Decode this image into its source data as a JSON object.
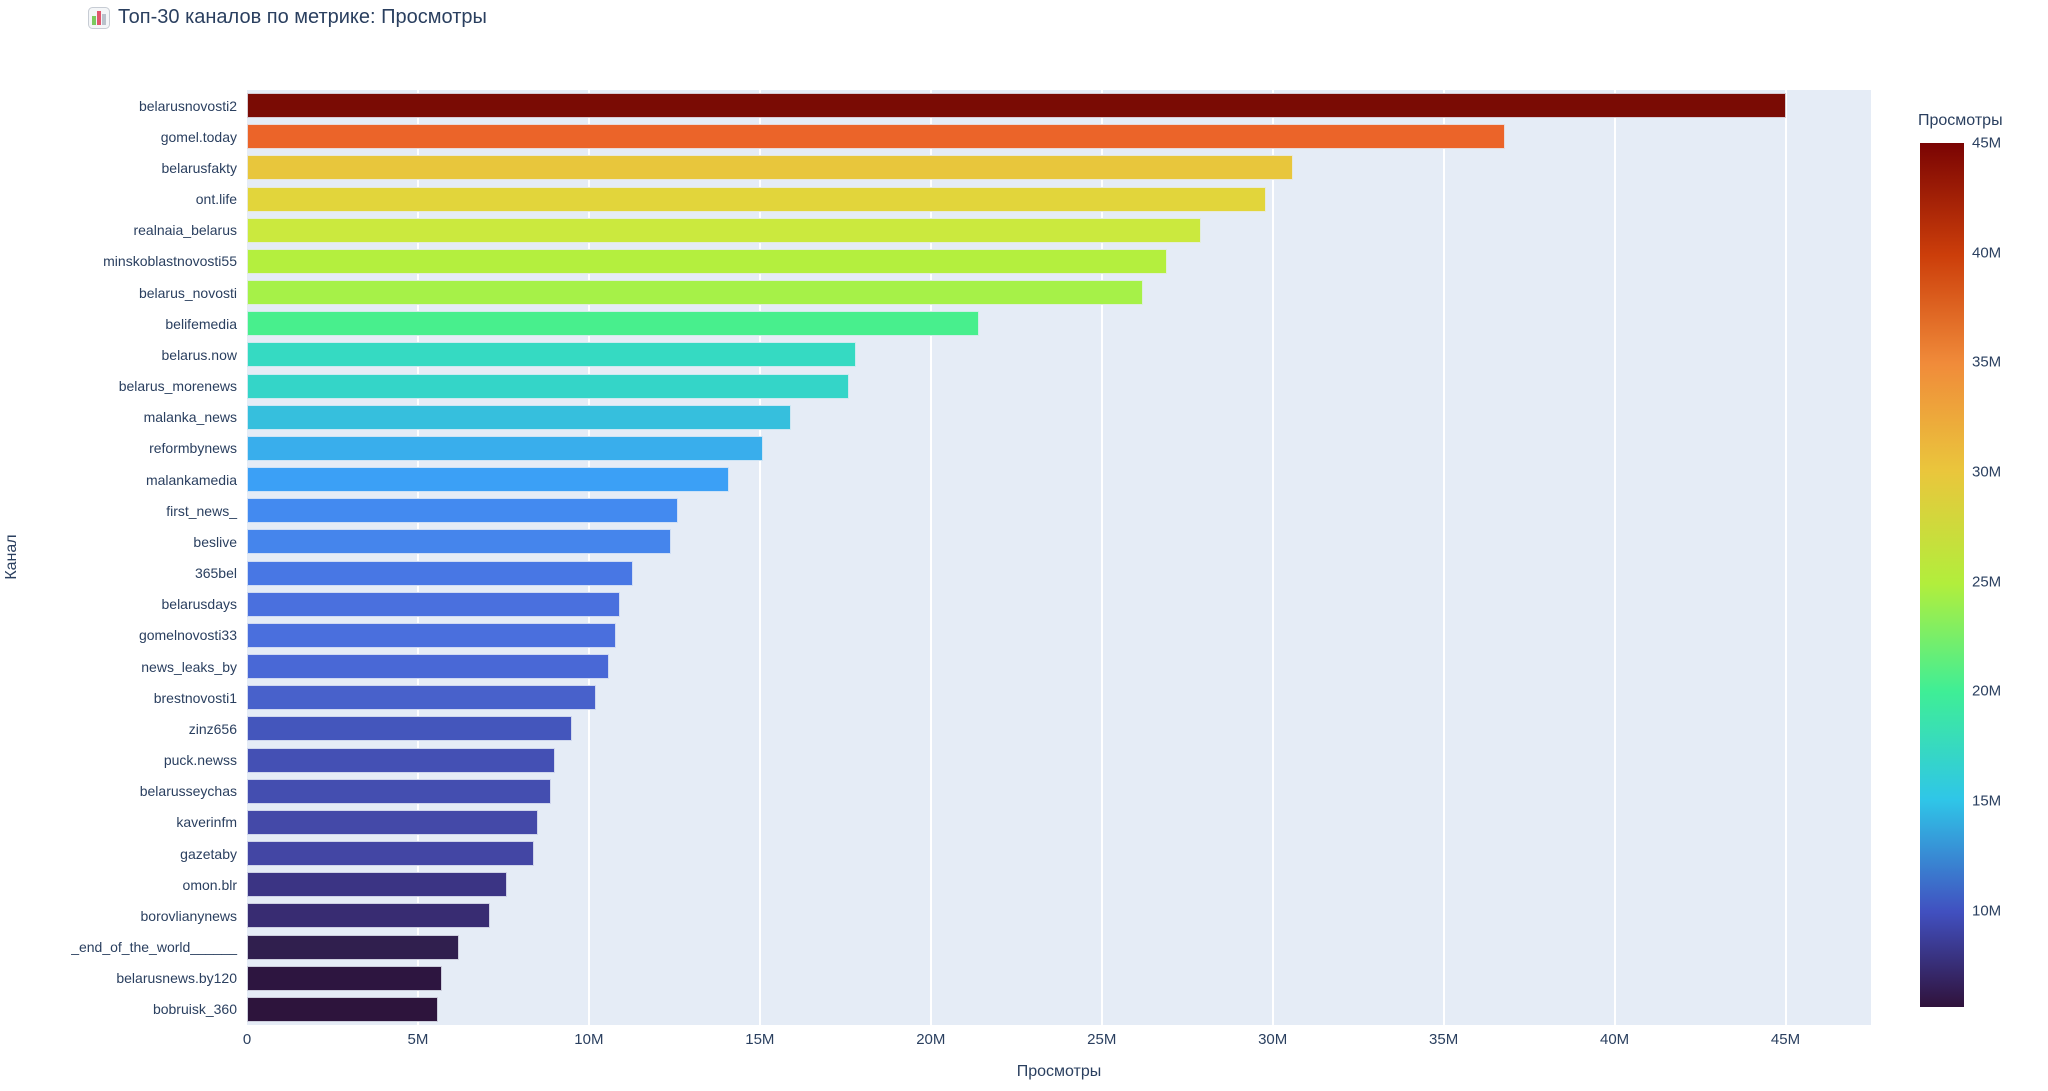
{
  "title": "Топ-30 каналов по метрике: Просмотры",
  "icons": {
    "title_icon": "bar-chart-emoji"
  },
  "colors": {
    "paper_bg": "#ffffff",
    "plot_bg": "#e5ecf6",
    "grid": "#ffffff",
    "text": "#2a3f5f"
  },
  "chart_data": {
    "type": "bar",
    "orientation": "horizontal",
    "title": "Топ-30 каналов по метрике: Просмотры",
    "xlabel": "Просмотры",
    "ylabel": "Канал",
    "xlim_m": [
      0,
      47.5
    ],
    "grid": true,
    "x_ticks": [
      "0",
      "5M",
      "10M",
      "15M",
      "20M",
      "25M",
      "30M",
      "35M",
      "40M",
      "45M"
    ],
    "x_tick_values_m": [
      0,
      5,
      10,
      15,
      20,
      25,
      30,
      35,
      40,
      45
    ],
    "categories": [
      "belarusnovosti2",
      "gomel.today",
      "belarusfakty",
      "ont.life",
      "realnaia_belarus",
      "minskoblastnovosti55",
      "belarus_novosti",
      "belifemedia",
      "belarus.now",
      "belarus_morenews",
      "malanka_news",
      "reformbynews",
      "malankamedia",
      "first_news_",
      "beslive",
      "365bel",
      "belarusdays",
      "gomelnovosti33",
      "news_leaks_by",
      "brestnovosti1",
      "zinz656",
      "puck.newss",
      "belarusseychas",
      "kaverinfm",
      "gazetaby",
      "omon.blr",
      "borovlianynews",
      "_end_of_the_world______",
      "belarusnews.by120",
      "bobruisk_360"
    ],
    "values_m": [
      45.0,
      36.8,
      30.6,
      29.8,
      27.9,
      26.9,
      26.2,
      21.4,
      17.8,
      17.6,
      15.9,
      15.1,
      14.1,
      12.6,
      12.4,
      11.3,
      10.9,
      10.8,
      10.6,
      10.2,
      9.5,
      9.0,
      8.9,
      8.5,
      8.4,
      7.6,
      7.1,
      6.2,
      5.7,
      5.6
    ],
    "bar_colors": [
      "#7a0b04",
      "#eb6429",
      "#e8c63c",
      "#e2d53b",
      "#cbe93e",
      "#b4ef3e",
      "#a6f148",
      "#48ef8d",
      "#35dac2",
      "#34d5c8",
      "#36bfdd",
      "#39aeec",
      "#3ba0f6",
      "#438af0",
      "#4585ec",
      "#4877e4",
      "#4a70de",
      "#4a6fdd",
      "#4968d6",
      "#4861cb",
      "#4456bc",
      "#4450b4",
      "#444eb0",
      "#4449a8",
      "#4346a4",
      "#3b3484",
      "#382c72",
      "#301f4e",
      "#2d1540",
      "#2d143c"
    ],
    "colorbar": {
      "title": "Просмотры",
      "colormap": "turbo",
      "min_m": 5.6,
      "max_m": 45.0,
      "tick_labels": [
        "45M",
        "40M",
        "35M",
        "30M",
        "25M",
        "20M",
        "15M",
        "10M"
      ],
      "tick_values_m": [
        45,
        40,
        35,
        30,
        25,
        20,
        15,
        10
      ],
      "gradient_stops": [
        {
          "pos": 0,
          "color": "#7a0403"
        },
        {
          "pos": 13,
          "color": "#cc3e0a"
        },
        {
          "pos": 25.5,
          "color": "#f08b3a"
        },
        {
          "pos": 38,
          "color": "#eac63c"
        },
        {
          "pos": 51,
          "color": "#b2ee3c"
        },
        {
          "pos": 63.5,
          "color": "#3fee96"
        },
        {
          "pos": 76,
          "color": "#2fc6e8"
        },
        {
          "pos": 89,
          "color": "#4150c0"
        },
        {
          "pos": 100,
          "color": "#30123b"
        }
      ]
    }
  }
}
